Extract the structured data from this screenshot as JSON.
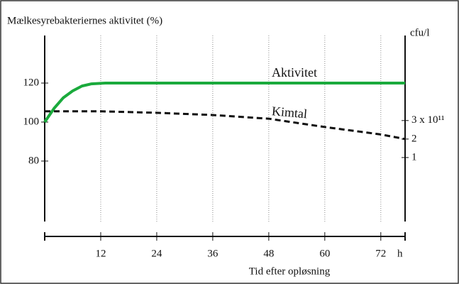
{
  "chart_data": {
    "type": "line",
    "title": "Mælkesyrebakteriernes aktivitet (%)",
    "y2_label": "cfu/l",
    "x_label": "Tid efter opløsning",
    "x_unit": "h",
    "xlim": [
      0,
      77.2
    ],
    "xticks": [
      12,
      24,
      36,
      48,
      60,
      72
    ],
    "ylim": [
      49,
      144.4
    ],
    "yticks": [
      80,
      100,
      120
    ],
    "y2lim": [
      -2.46,
      7.6
    ],
    "y2ticks": [
      {
        "value": 1,
        "label": "1"
      },
      {
        "value": 2,
        "label": "2"
      },
      {
        "value": 3,
        "label": "3 x 10¹¹"
      }
    ],
    "grid": true,
    "series": [
      {
        "name": "Aktivitet",
        "color": "#1aaa3c",
        "axis": "y",
        "x": [
          0,
          2,
          4,
          6,
          8,
          10,
          13,
          77.2
        ],
        "values": [
          100,
          107,
          112.5,
          116,
          118.5,
          119.6,
          120,
          120
        ]
      },
      {
        "name": "Kimtal",
        "color": "#111111",
        "axis": "y2",
        "x": [
          0,
          12,
          24,
          36,
          48,
          60,
          72,
          77.2
        ],
        "values": [
          3.5,
          3.5,
          3.42,
          3.3,
          3.1,
          2.65,
          2.25,
          2.0
        ]
      }
    ]
  }
}
